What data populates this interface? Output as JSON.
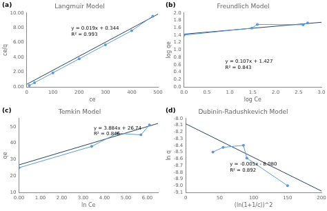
{
  "chart_data": [
    {
      "type": "line",
      "title": "Langmuir Model",
      "label": "(a)",
      "xlabel": "ce",
      "ylabel": "ce/q",
      "xlim": [
        0,
        500
      ],
      "ylim": [
        0,
        10.0
      ],
      "xticks": [
        0,
        100,
        200,
        300,
        400,
        500
      ],
      "yticks": [
        {
          "value": 0.0,
          "label": "0.00"
        },
        {
          "value": 2.0,
          "label": "2.00"
        },
        {
          "value": 4.0,
          "label": "4.00"
        },
        {
          "value": 6.0,
          "label": "6.00"
        },
        {
          "value": 8.0,
          "label": "8.00"
        },
        {
          "value": 10.0,
          "label": "10.00"
        }
      ],
      "grid": false,
      "series": [
        {
          "color": "#243f60",
          "marker": "none",
          "line_style": "solid",
          "x": [
            0,
            500
          ],
          "values": [
            0.344,
            9.844
          ]
        },
        {
          "color": "#5b9bd5",
          "marker": "circle",
          "line_style": "solid",
          "x": [
            10,
            30,
            100,
            200,
            300,
            400,
            480
          ],
          "values": [
            0.19,
            0.57,
            1.9,
            3.8,
            5.7,
            7.6,
            9.56
          ]
        }
      ],
      "annotations": [
        {
          "text": "y = 0.019x + 0.344\nR² = 0.993",
          "x": 170,
          "y": 8.2
        }
      ]
    },
    {
      "type": "line",
      "title": "Freundlich Model",
      "label": "(b)",
      "xlabel": "log Ce",
      "ylabel": "log qe",
      "xlim": [
        0,
        3
      ],
      "ylim": [
        0,
        2
      ],
      "xticks": [
        {
          "value": 0,
          "label": "0.0"
        },
        0.5,
        {
          "value": 1,
          "label": "1.0"
        },
        1.5,
        {
          "value": 2,
          "label": "2.0"
        },
        2.5,
        {
          "value": 3,
          "label": "3.0"
        }
      ],
      "yticks": [
        {
          "value": 0,
          "label": "0.0"
        },
        0.2,
        0.4,
        0.6,
        0.8,
        {
          "value": 1.0,
          "label": "1.0"
        },
        1.2,
        1.4,
        1.6,
        1.8,
        {
          "value": 2.0,
          "label": "2.0"
        }
      ],
      "grid": false,
      "series": [
        {
          "color": "#243f60",
          "marker": "none",
          "line_style": "solid",
          "x": [
            0,
            3
          ],
          "values": [
            1.427,
            1.748
          ]
        },
        {
          "color": "#5b9bd5",
          "marker": "circle",
          "line_style": "solid",
          "x": [
            0.0,
            1.48,
            1.6,
            2.6,
            2.7
          ],
          "values": [
            1.4,
            1.59,
            1.69,
            1.68,
            1.73
          ]
        }
      ],
      "annotations": [
        {
          "text": "y = 0.107x + 1.427\nR² = 0.843",
          "x": 0.9,
          "y": 0.75
        }
      ]
    },
    {
      "type": "line",
      "title": "Temkin Model",
      "label": "(c)",
      "xlabel": "ln Ce",
      "ylabel": "qe",
      "xlim": [
        0.0,
        6.5
      ],
      "ylim": [
        10,
        55
      ],
      "xticks": [
        {
          "value": 0,
          "label": "0.00"
        },
        {
          "value": 1,
          "label": "1.00"
        },
        {
          "value": 2,
          "label": "2.00"
        },
        {
          "value": 3,
          "label": "3.00"
        },
        {
          "value": 4,
          "label": "4.00"
        },
        {
          "value": 5,
          "label": "5.00"
        },
        {
          "value": 6,
          "label": "6.00"
        }
      ],
      "yticks": [
        10,
        20,
        30,
        40,
        50
      ],
      "grid": false,
      "series": [
        {
          "color": "#243f60",
          "marker": "none",
          "line_style": "solid",
          "x": [
            0.0,
            6.5
          ],
          "values": [
            26.74,
            51.986
          ]
        },
        {
          "color": "#5b9bd5",
          "marker": "circle",
          "line_style": "solid",
          "x": [
            0.0,
            3.4,
            4.6,
            5.7,
            6.1
          ],
          "values": [
            25.0,
            38.0,
            46.0,
            45.0,
            51.0
          ]
        }
      ],
      "annotations": [
        {
          "text": "y = 3.884x + 26.74\nR² = 0.846",
          "x": 3.5,
          "y": 50.5
        }
      ]
    },
    {
      "type": "line",
      "title": "Dubinin-Radushkevich Model",
      "label": "(d)",
      "xlabel": "(ln(1+1/c))^2",
      "ylabel": "ln q",
      "xlim": [
        0,
        200
      ],
      "ylim": [
        -9.1,
        -8.0
      ],
      "xticks": [
        0,
        50,
        100,
        150,
        200
      ],
      "yticks": [
        -9.1,
        {
          "value": -9.0,
          "label": "-9.0"
        },
        -8.9,
        -8.8,
        -8.7,
        -8.6,
        -8.5,
        -8.4,
        -8.3,
        -8.2,
        -8.1,
        {
          "value": -8.0,
          "label": "-8.0"
        }
      ],
      "grid": false,
      "series": [
        {
          "color": "#243f60",
          "marker": "none",
          "line_style": "solid",
          "x": [
            0,
            200
          ],
          "values": [
            -8.08,
            -9.08
          ]
        },
        {
          "color": "#5b9bd5",
          "marker": "circle",
          "line_style": "solid",
          "x": [
            40,
            55,
            85,
            90,
            150
          ],
          "values": [
            -8.5,
            -8.43,
            -8.4,
            -8.59,
            -9.0
          ]
        }
      ],
      "annotations": [
        {
          "text": "y = -0.005x - 8.080\nR² = 0.892",
          "x": 65,
          "y": -8.65
        }
      ]
    }
  ]
}
